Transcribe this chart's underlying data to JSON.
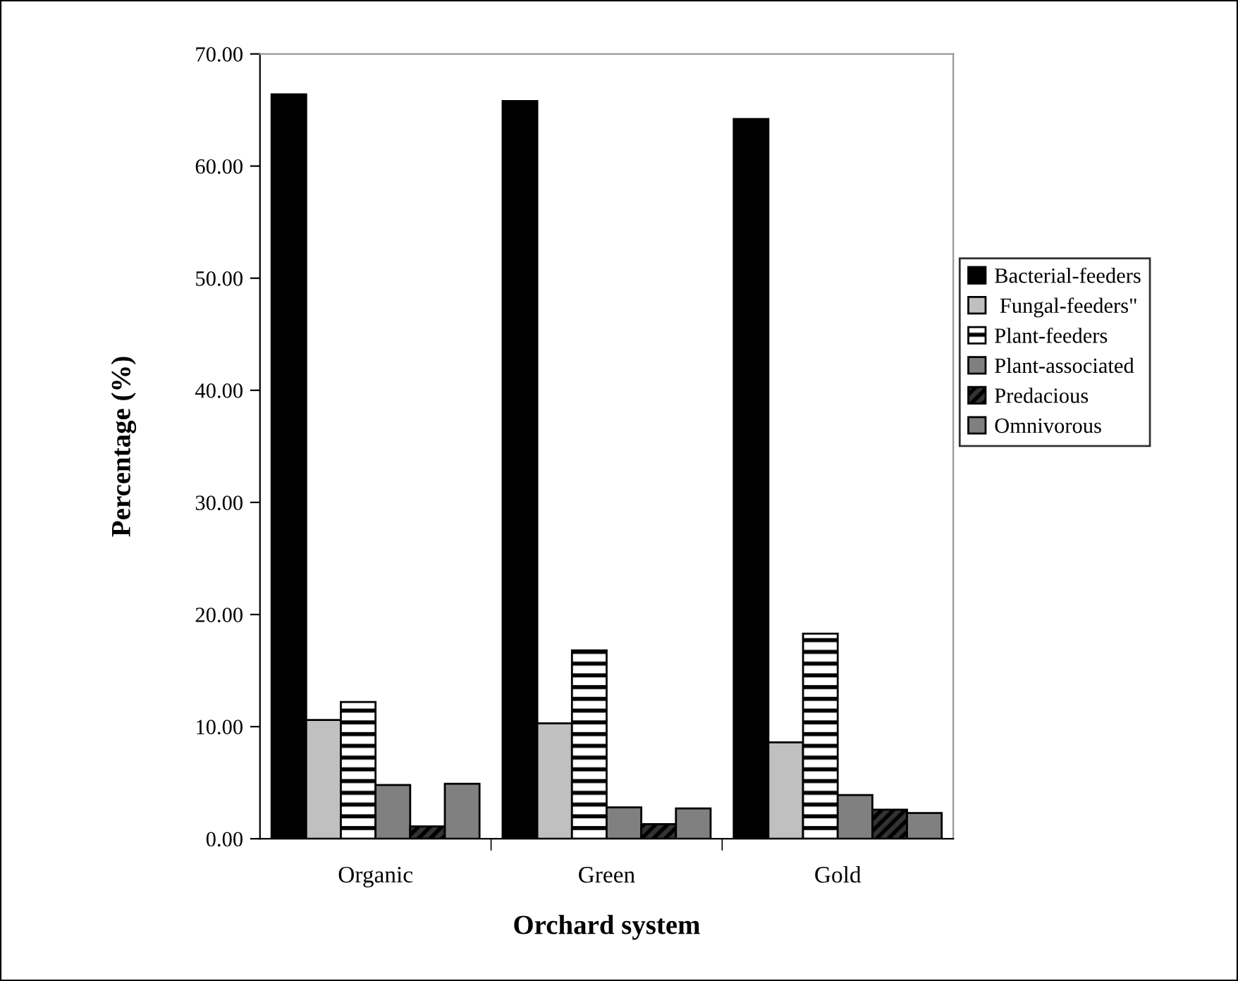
{
  "chart_data": {
    "type": "bar",
    "xlabel": "Orchard system",
    "ylabel": "Percentage (%)",
    "categories": [
      "Organic",
      "Green",
      "Gold"
    ],
    "series": [
      {
        "name": "Bacterial-feeders",
        "color": "#000000",
        "values": [
          66.4,
          65.8,
          64.2
        ]
      },
      {
        "name": " Fungal-feeders\"",
        "color": "#c0c0c0",
        "values": [
          10.6,
          10.3,
          8.6
        ]
      },
      {
        "name": "Plant-feeders",
        "color": "#000000",
        "values": [
          12.2,
          16.8,
          18.3
        ]
      },
      {
        "name": "Plant-associated",
        "color": "#808080",
        "values": [
          4.8,
          2.8,
          3.9
        ]
      },
      {
        "name": "Predacious",
        "color": "#000000",
        "values": [
          1.1,
          1.3,
          2.6
        ]
      },
      {
        "name": "Omnivorous",
        "color": "#808080",
        "values": [
          4.9,
          2.7,
          2.3
        ]
      }
    ],
    "ylim": [
      0,
      70
    ],
    "yticks": [
      {
        "value": 0,
        "label": "0.00"
      },
      {
        "value": 10,
        "label": "10.00"
      },
      {
        "value": 20,
        "label": "20.00"
      },
      {
        "value": 30,
        "label": "30.00"
      },
      {
        "value": 40,
        "label": "40.00"
      },
      {
        "value": 50,
        "label": "50.00"
      },
      {
        "value": 60,
        "label": "60.00"
      },
      {
        "value": 70,
        "label": "70.00"
      }
    ],
    "grid": false,
    "legend": "right"
  }
}
